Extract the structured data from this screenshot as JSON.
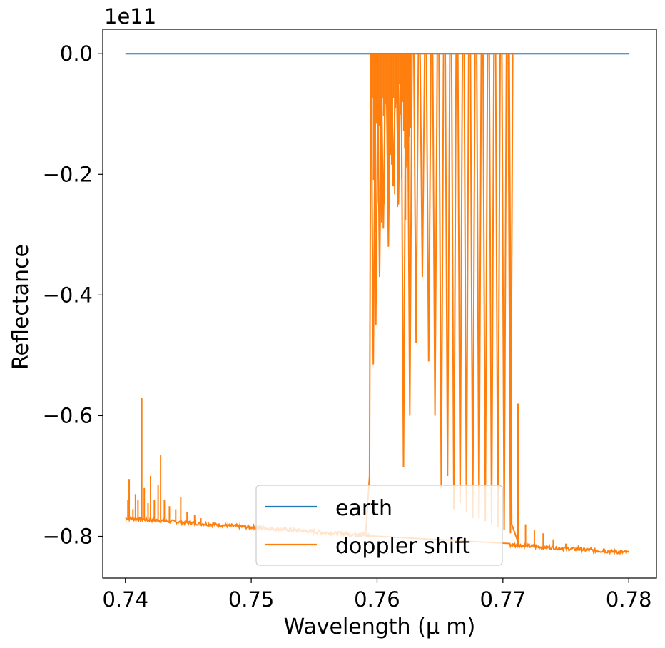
{
  "chart_data": {
    "type": "line",
    "title": "",
    "xlabel": "Wavelength (μ m)",
    "ylabel": "Reflectance",
    "y_offset_label": "1e11",
    "y_scale_factor": 100000000000,
    "xlim": [
      0.7382,
      0.7822
    ],
    "ylim": [
      -0.8692,
      0.0405
    ],
    "x_ticks": [
      0.74,
      0.75,
      0.76,
      0.77,
      0.78
    ],
    "x_tick_labels": [
      "0.74",
      "0.75",
      "0.76",
      "0.77",
      "0.78"
    ],
    "y_ticks": [
      0.0,
      -0.2,
      -0.4,
      -0.6,
      -0.8
    ],
    "y_tick_labels": [
      "0.0",
      "−0.2",
      "−0.4",
      "−0.6",
      "−0.8"
    ],
    "grid": false,
    "legend_position": "lower-center",
    "series": [
      {
        "name": "earth",
        "color": "#1f77b4",
        "x": [
          0.74,
          0.78
        ],
        "y": [
          0.0,
          0.0
        ]
      },
      {
        "name": "doppler shift",
        "color": "#ff7f0e",
        "baseline": {
          "x": [
            0.74,
            0.7595,
            0.78
          ],
          "y": [
            -0.77,
            -0.799,
            -0.827
          ]
        },
        "band_x": [
          0.7595,
          0.7705
        ],
        "spikes": [
          {
            "x": 0.7402,
            "y": -0.74
          },
          {
            "x": 0.7403,
            "y": -0.705
          },
          {
            "x": 0.7406,
            "y": -0.755
          },
          {
            "x": 0.7408,
            "y": -0.73
          },
          {
            "x": 0.741,
            "y": -0.74
          },
          {
            "x": 0.7413,
            "y": -0.57
          },
          {
            "x": 0.7415,
            "y": -0.72
          },
          {
            "x": 0.7418,
            "y": -0.745
          },
          {
            "x": 0.742,
            "y": -0.7
          },
          {
            "x": 0.7423,
            "y": -0.74
          },
          {
            "x": 0.7426,
            "y": -0.715
          },
          {
            "x": 0.7428,
            "y": -0.665
          },
          {
            "x": 0.7431,
            "y": -0.74
          },
          {
            "x": 0.7435,
            "y": -0.75
          },
          {
            "x": 0.744,
            "y": -0.755
          },
          {
            "x": 0.7444,
            "y": -0.735
          },
          {
            "x": 0.7449,
            "y": -0.76
          },
          {
            "x": 0.7455,
            "y": -0.765
          },
          {
            "x": 0.746,
            "y": -0.77
          },
          {
            "x": 0.747,
            "y": -0.776
          },
          {
            "x": 0.748,
            "y": -0.779
          },
          {
            "x": 0.749,
            "y": -0.783
          },
          {
            "x": 0.75,
            "y": -0.788
          },
          {
            "x": 0.7515,
            "y": -0.79
          },
          {
            "x": 0.753,
            "y": -0.792
          },
          {
            "x": 0.7545,
            "y": -0.794
          },
          {
            "x": 0.7712,
            "y": -0.58
          },
          {
            "x": 0.7718,
            "y": -0.78
          },
          {
            "x": 0.7725,
            "y": -0.79
          },
          {
            "x": 0.7732,
            "y": -0.795
          },
          {
            "x": 0.774,
            "y": -0.805
          },
          {
            "x": 0.775,
            "y": -0.812
          },
          {
            "x": 0.776,
            "y": -0.815
          },
          {
            "x": 0.777,
            "y": -0.818
          },
          {
            "x": 0.778,
            "y": -0.82
          },
          {
            "x": 0.779,
            "y": -0.822
          }
        ],
        "band_lines": [
          {
            "x": 0.7597,
            "y": -0.515
          },
          {
            "x": 0.7599,
            "y": -0.45
          },
          {
            "x": 0.7602,
            "y": -0.37
          },
          {
            "x": 0.7605,
            "y": -0.29
          },
          {
            "x": 0.7609,
            "y": -0.32
          },
          {
            "x": 0.7613,
            "y": -0.22
          },
          {
            "x": 0.7617,
            "y": -0.25
          },
          {
            "x": 0.7621,
            "y": -0.685
          },
          {
            "x": 0.7626,
            "y": -0.6
          },
          {
            "x": 0.7631,
            "y": -0.48
          },
          {
            "x": 0.7636,
            "y": -0.37
          },
          {
            "x": 0.7641,
            "y": -0.51
          },
          {
            "x": 0.7646,
            "y": -0.6
          },
          {
            "x": 0.7651,
            "y": -0.72
          },
          {
            "x": 0.7656,
            "y": -0.7
          },
          {
            "x": 0.7661,
            "y": -0.755
          },
          {
            "x": 0.7666,
            "y": -0.745
          },
          {
            "x": 0.7671,
            "y": -0.76
          },
          {
            "x": 0.7676,
            "y": -0.77
          },
          {
            "x": 0.7681,
            "y": -0.77
          },
          {
            "x": 0.7686,
            "y": -0.775
          },
          {
            "x": 0.7691,
            "y": -0.78
          },
          {
            "x": 0.7696,
            "y": -0.785
          },
          {
            "x": 0.7701,
            "y": -0.79
          },
          {
            "x": 0.7706,
            "y": -0.795
          }
        ]
      }
    ]
  }
}
